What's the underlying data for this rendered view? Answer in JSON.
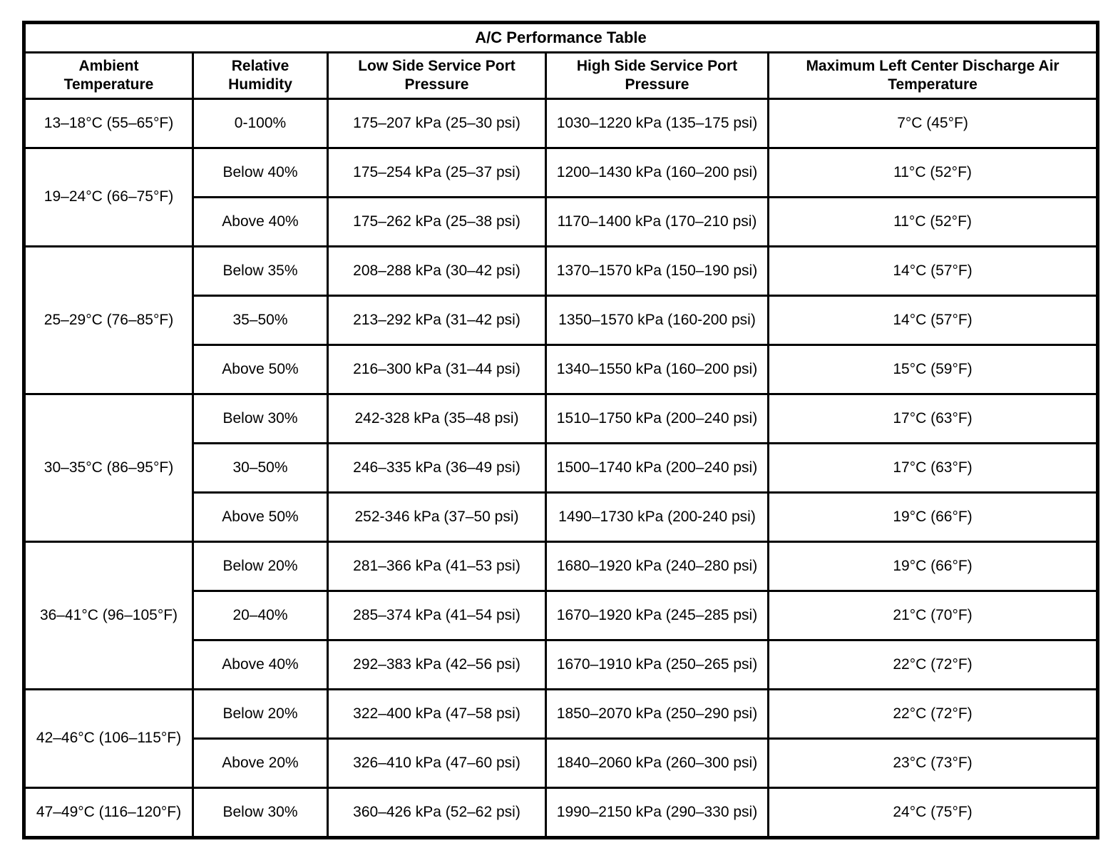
{
  "title": "A/C Performance Table",
  "columns": [
    "Ambient Temperature",
    "Relative Humidity",
    "Low Side Service Port Pressure",
    "High Side Service Port Pressure",
    "Maximum Left Center Discharge Air Temperature"
  ],
  "groups": [
    {
      "ambient": "13–18°C (55–65°F)",
      "rows": [
        {
          "humidity": "0-100%",
          "low": "175–207 kPa (25–30 psi)",
          "high": "1030–1220 kPa (135–175 psi)",
          "discharge": "7°C (45°F)"
        }
      ]
    },
    {
      "ambient": "19–24°C (66–75°F)",
      "rows": [
        {
          "humidity": "Below 40%",
          "low": "175–254 kPa (25–37 psi)",
          "high": "1200–1430 kPa (160–200 psi)",
          "discharge": "11°C (52°F)"
        },
        {
          "humidity": "Above 40%",
          "low": "175–262 kPa (25–38 psi)",
          "high": "1170–1400 kPa (170–210 psi)",
          "discharge": "11°C (52°F)"
        }
      ]
    },
    {
      "ambient": "25–29°C (76–85°F)",
      "rows": [
        {
          "humidity": "Below 35%",
          "low": "208–288 kPa (30–42 psi)",
          "high": "1370–1570 kPa (150–190 psi)",
          "discharge": "14°C (57°F)"
        },
        {
          "humidity": "35–50%",
          "low": "213–292 kPa (31–42 psi)",
          "high": "1350–1570 kPa (160-200 psi)",
          "discharge": "14°C (57°F)"
        },
        {
          "humidity": "Above 50%",
          "low": "216–300 kPa (31–44 psi)",
          "high": "1340–1550 kPa (160–200 psi)",
          "discharge": "15°C (59°F)"
        }
      ]
    },
    {
      "ambient": "30–35°C (86–95°F)",
      "rows": [
        {
          "humidity": "Below 30%",
          "low": "242-328 kPa (35–48 psi)",
          "high": "1510–1750 kPa (200–240 psi)",
          "discharge": "17°C (63°F)"
        },
        {
          "humidity": "30–50%",
          "low": "246–335 kPa (36–49 psi)",
          "high": "1500–1740 kPa (200–240 psi)",
          "discharge": "17°C (63°F)"
        },
        {
          "humidity": "Above 50%",
          "low": "252-346 kPa (37–50 psi)",
          "high": "1490–1730 kPa (200-240 psi)",
          "discharge": "19°C (66°F)"
        }
      ]
    },
    {
      "ambient": "36–41°C (96–105°F)",
      "rows": [
        {
          "humidity": "Below 20%",
          "low": "281–366 kPa (41–53 psi)",
          "high": "1680–1920 kPa (240–280 psi)",
          "discharge": "19°C (66°F)"
        },
        {
          "humidity": "20–40%",
          "low": "285–374 kPa (41–54 psi)",
          "high": "1670–1920 kPa (245–285 psi)",
          "discharge": "21°C (70°F)"
        },
        {
          "humidity": "Above 40%",
          "low": "292–383 kPa (42–56 psi)",
          "high": "1670–1910 kPa (250–265 psi)",
          "discharge": "22°C (72°F)"
        }
      ]
    },
    {
      "ambient": "42–46°C (106–115°F)",
      "rows": [
        {
          "humidity": "Below 20%",
          "low": "322–400 kPa (47–58 psi)",
          "high": "1850–2070 kPa (250–290 psi)",
          "discharge": "22°C (72°F)"
        },
        {
          "humidity": "Above 20%",
          "low": "326–410 kPa (47–60 psi)",
          "high": "1840–2060 kPa (260–300 psi)",
          "discharge": "23°C (73°F)"
        }
      ]
    },
    {
      "ambient": "47–49°C (116–120°F)",
      "rows": [
        {
          "humidity": "Below 30%",
          "low": "360–426 kPa (52–62 psi)",
          "high": "1990–2150 kPa (290–330 psi)",
          "discharge": "24°C (75°F)"
        }
      ]
    }
  ]
}
